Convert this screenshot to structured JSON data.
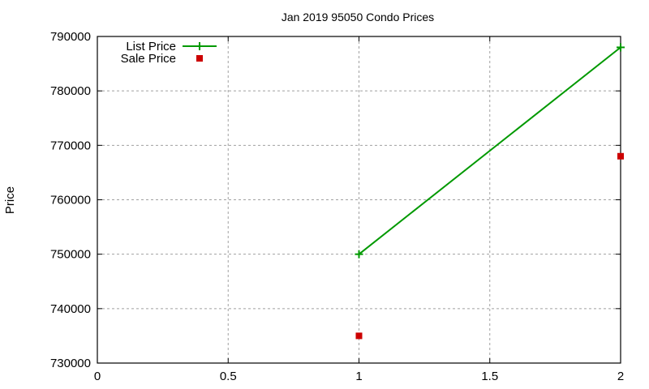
{
  "chart_data": {
    "type": "line",
    "title": "Jan 2019 95050 Condo Prices",
    "xlabel": "",
    "ylabel": "Price",
    "xlim": [
      0,
      2
    ],
    "ylim": [
      730000,
      790000
    ],
    "xticks": [
      "0",
      "0.5",
      "1",
      "1.5",
      "2"
    ],
    "xtick_values": [
      0,
      0.5,
      1,
      1.5,
      2
    ],
    "yticks": [
      "730000",
      "740000",
      "750000",
      "760000",
      "770000",
      "780000",
      "790000"
    ],
    "ytick_values": [
      730000,
      740000,
      750000,
      760000,
      770000,
      780000,
      790000
    ],
    "grid": true,
    "legend_position": "top-left",
    "series": [
      {
        "name": "List Price",
        "style": "linespoints",
        "marker": "plus",
        "color": "#009900",
        "x": [
          1,
          2
        ],
        "values": [
          750000,
          788000
        ]
      },
      {
        "name": "Sale Price",
        "style": "points",
        "marker": "square",
        "color": "#cc0000",
        "x": [
          1,
          2
        ],
        "values": [
          735000,
          768000
        ]
      }
    ]
  }
}
